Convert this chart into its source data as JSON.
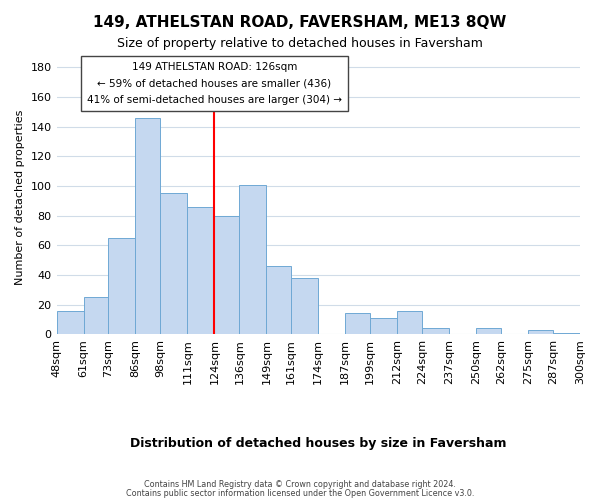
{
  "title": "149, ATHELSTAN ROAD, FAVERSHAM, ME13 8QW",
  "subtitle": "Size of property relative to detached houses in Faversham",
  "xlabel": "Distribution of detached houses by size in Faversham",
  "ylabel": "Number of detached properties",
  "bar_edges": [
    48,
    61,
    73,
    86,
    98,
    111,
    124,
    136,
    149,
    161,
    174,
    187,
    199,
    212,
    224,
    237,
    250,
    262,
    275,
    287,
    300
  ],
  "bar_heights": [
    16,
    25,
    65,
    146,
    95,
    86,
    80,
    101,
    46,
    38,
    0,
    14,
    11,
    16,
    4,
    0,
    4,
    0,
    3,
    1
  ],
  "bar_color": "#c5d8f0",
  "bar_edge_color": "#6fa8d4",
  "vline_x": 124,
  "vline_color": "red",
  "annotation_title": "149 ATHELSTAN ROAD: 126sqm",
  "annotation_line1": "← 59% of detached houses are smaller (436)",
  "annotation_line2": "41% of semi-detached houses are larger (304) →",
  "annotation_box_color": "white",
  "annotation_box_edge": "#444444",
  "ylim": [
    0,
    185
  ],
  "yticks": [
    0,
    20,
    40,
    60,
    80,
    100,
    120,
    140,
    160,
    180
  ],
  "tick_labels": [
    "48sqm",
    "61sqm",
    "73sqm",
    "86sqm",
    "98sqm",
    "111sqm",
    "124sqm",
    "136sqm",
    "149sqm",
    "161sqm",
    "174sqm",
    "187sqm",
    "199sqm",
    "212sqm",
    "224sqm",
    "237sqm",
    "250sqm",
    "262sqm",
    "275sqm",
    "287sqm",
    "300sqm"
  ],
  "footer_line1": "Contains HM Land Registry data © Crown copyright and database right 2024.",
  "footer_line2": "Contains public sector information licensed under the Open Government Licence v3.0.",
  "background_color": "#ffffff",
  "grid_color": "#d0dce8"
}
